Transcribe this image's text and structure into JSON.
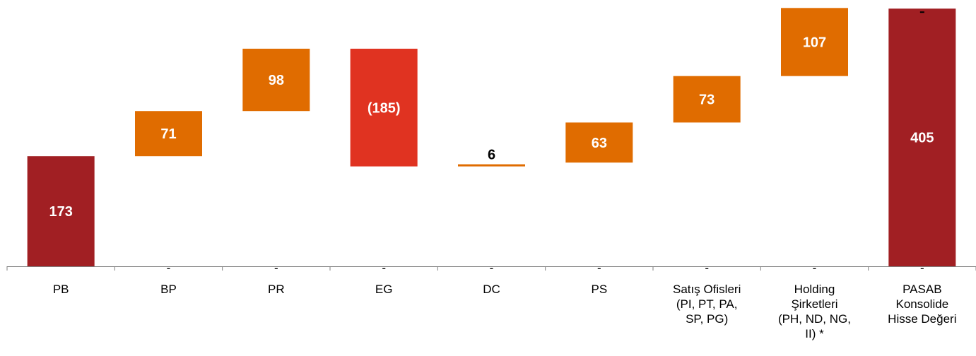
{
  "chart_data": {
    "type": "waterfall",
    "categories": [
      "PB",
      "BP",
      "PR",
      "EG",
      "DC",
      "PS",
      "Satış Ofisleri (PI, PT, PA, SP, PG)",
      "Holding Şirketleri (PH, ND, NG, II) *",
      "PASAB Konsolide Hisse Değeri"
    ],
    "category_lines": [
      [
        "PB"
      ],
      [
        "BP"
      ],
      [
        "PR"
      ],
      [
        "EG"
      ],
      [
        "DC"
      ],
      [
        "PS"
      ],
      [
        "Satış Ofisleri",
        "(PI, PT, PA,",
        "SP, PG)"
      ],
      [
        "Holding",
        "Şirketleri",
        "(PH, ND, NG,",
        "II) *"
      ],
      [
        "PASAB",
        "Konsolide",
        "Hisse Değeri"
      ]
    ],
    "values": [
      173,
      71,
      98,
      -185,
      6,
      63,
      73,
      107,
      405
    ],
    "bar_kinds": [
      "total",
      "delta",
      "delta",
      "delta",
      "delta",
      "delta",
      "delta",
      "delta",
      "total"
    ],
    "data_labels": [
      "173",
      "71",
      "98",
      "(185)",
      "6",
      "63",
      "73",
      "107",
      "405"
    ],
    "baseline_labels": [
      "",
      "-",
      "-",
      "-",
      "-",
      "-",
      "-",
      "-",
      "-"
    ],
    "ylim": [
      0,
      413
    ],
    "grid": false,
    "legend": "none",
    "colors": {
      "total": "#a11f23",
      "increase": "#e06c00",
      "decrease": "#e03321",
      "label_on_bar": "#ffffff",
      "label_small": "#000000",
      "axis": "#808080"
    }
  }
}
